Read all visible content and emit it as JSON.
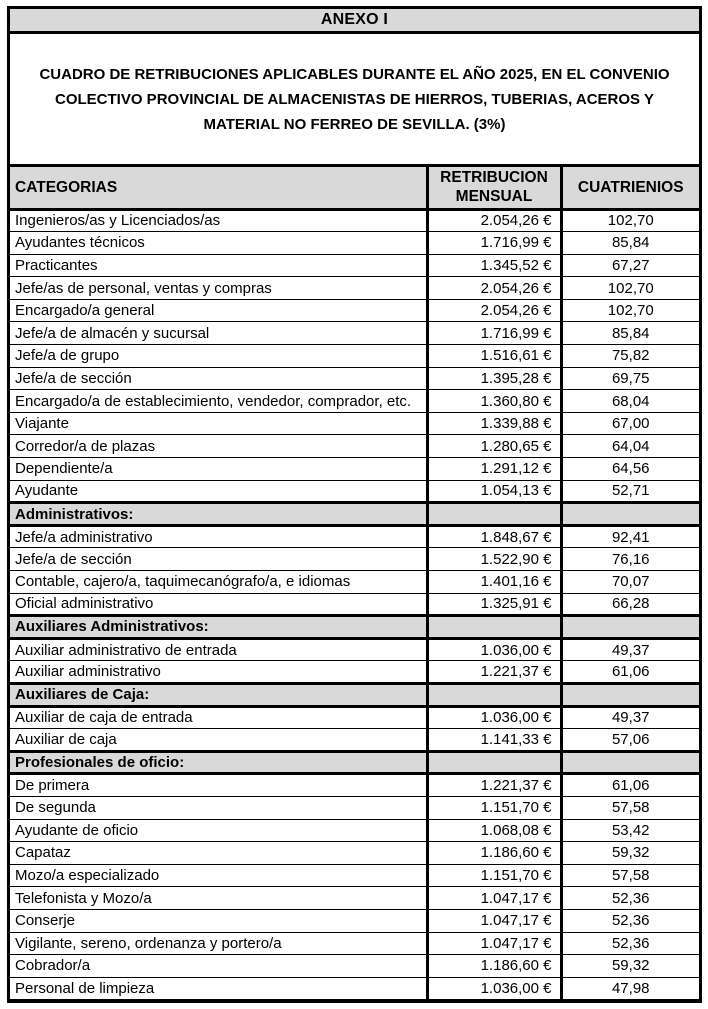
{
  "document": {
    "anexo_title": "ANEXO I",
    "title": "CUADRO DE RETRIBUCIONES APLICABLES DURANTE EL AÑO 2025, EN EL CONVENIO COLECTIVO PROVINCIAL DE ALMACENISTAS DE HIERROS, TUBERIAS, ACEROS Y MATERIAL NO FERREO DE SEVILLA. (3%)"
  },
  "colors": {
    "header_bg": "#d9d9d9",
    "border": "#000000",
    "text": "#000000"
  },
  "table": {
    "headers": [
      "CATEGORIAS",
      "RETRIBUCION MENSUAL",
      "CUATRIENIOS"
    ],
    "rows": [
      {
        "type": "data",
        "category": "Ingenieros/as y Licenciados/as",
        "monthly": "2.054,26 €",
        "cuatrienios": "102,70"
      },
      {
        "type": "data",
        "category": "Ayudantes técnicos",
        "monthly": "1.716,99 €",
        "cuatrienios": "85,84"
      },
      {
        "type": "data",
        "category": "Practicantes",
        "monthly": "1.345,52 €",
        "cuatrienios": "67,27"
      },
      {
        "type": "data",
        "category": "Jefe/as de personal, ventas y compras",
        "monthly": "2.054,26 €",
        "cuatrienios": "102,70"
      },
      {
        "type": "data",
        "category": "Encargado/a general",
        "monthly": "2.054,26 €",
        "cuatrienios": "102,70"
      },
      {
        "type": "data",
        "category": "Jefe/a de almacén y sucursal",
        "monthly": "1.716,99 €",
        "cuatrienios": "85,84"
      },
      {
        "type": "data",
        "category": "Jefe/a de grupo",
        "monthly": "1.516,61 €",
        "cuatrienios": "75,82"
      },
      {
        "type": "data",
        "category": "Jefe/a de sección",
        "monthly": "1.395,28 €",
        "cuatrienios": "69,75"
      },
      {
        "type": "data",
        "category": "Encargado/a de establecimiento, vendedor, comprador, etc.",
        "monthly": "1.360,80 €",
        "cuatrienios": "68,04"
      },
      {
        "type": "data",
        "category": "Viajante",
        "monthly": "1.339,88 €",
        "cuatrienios": "67,00"
      },
      {
        "type": "data",
        "category": "Corredor/a de plazas",
        "monthly": "1.280,65 €",
        "cuatrienios": "64,04"
      },
      {
        "type": "data",
        "category": "Dependiente/a",
        "monthly": "1.291,12 €",
        "cuatrienios": "64,56"
      },
      {
        "type": "data",
        "category": "Ayudante",
        "monthly": "1.054,13 €",
        "cuatrienios": "52,71"
      },
      {
        "type": "section",
        "category": "Administrativos:",
        "monthly": "",
        "cuatrienios": ""
      },
      {
        "type": "data",
        "category": "Jefe/a administrativo",
        "monthly": "1.848,67 €",
        "cuatrienios": "92,41"
      },
      {
        "type": "data",
        "category": "Jefe/a de sección",
        "monthly": "1.522,90 €",
        "cuatrienios": "76,16"
      },
      {
        "type": "data",
        "category": "Contable, cajero/a, taquimecanógrafo/a, e idiomas",
        "monthly": "1.401,16 €",
        "cuatrienios": "70,07"
      },
      {
        "type": "data",
        "category": "Oficial administrativo",
        "monthly": "1.325,91 €",
        "cuatrienios": "66,28"
      },
      {
        "type": "section",
        "category": "Auxiliares Administrativos:",
        "monthly": "",
        "cuatrienios": ""
      },
      {
        "type": "data",
        "category": "Auxiliar administrativo de entrada",
        "monthly": "1.036,00 €",
        "cuatrienios": "49,37"
      },
      {
        "type": "data",
        "category": "Auxiliar administrativo",
        "monthly": "1.221,37 €",
        "cuatrienios": "61,06"
      },
      {
        "type": "section",
        "category": "Auxiliares de Caja:",
        "monthly": "",
        "cuatrienios": ""
      },
      {
        "type": "data",
        "category": "Auxiliar de caja de entrada",
        "monthly": "1.036,00 €",
        "cuatrienios": "49,37"
      },
      {
        "type": "data",
        "category": "Auxiliar de caja",
        "monthly": "1.141,33 €",
        "cuatrienios": "57,06"
      },
      {
        "type": "section",
        "category": "Profesionales de oficio:",
        "monthly": "",
        "cuatrienios": ""
      },
      {
        "type": "data",
        "category": "De primera",
        "monthly": "1.221,37 €",
        "cuatrienios": "61,06"
      },
      {
        "type": "data",
        "category": "De segunda",
        "monthly": "1.151,70 €",
        "cuatrienios": "57,58"
      },
      {
        "type": "data",
        "category": "Ayudante de oficio",
        "monthly": "1.068,08 €",
        "cuatrienios": "53,42"
      },
      {
        "type": "data",
        "category": "Capataz",
        "monthly": "1.186,60 €",
        "cuatrienios": "59,32"
      },
      {
        "type": "data",
        "category": "Mozo/a especializado",
        "monthly": "1.151,70 €",
        "cuatrienios": "57,58"
      },
      {
        "type": "data",
        "category": "Telefonista y Mozo/a",
        "monthly": "1.047,17 €",
        "cuatrienios": "52,36"
      },
      {
        "type": "data",
        "category": "Conserje",
        "monthly": "1.047,17 €",
        "cuatrienios": "52,36"
      },
      {
        "type": "data",
        "category": "Vigilante, sereno, ordenanza y portero/a",
        "monthly": "1.047,17 €",
        "cuatrienios": "52,36"
      },
      {
        "type": "data",
        "category": "Cobrador/a",
        "monthly": "1.186,60 €",
        "cuatrienios": "59,32"
      },
      {
        "type": "data",
        "category": "Personal de limpieza",
        "monthly": "1.036,00 €",
        "cuatrienios": "47,98"
      }
    ]
  }
}
